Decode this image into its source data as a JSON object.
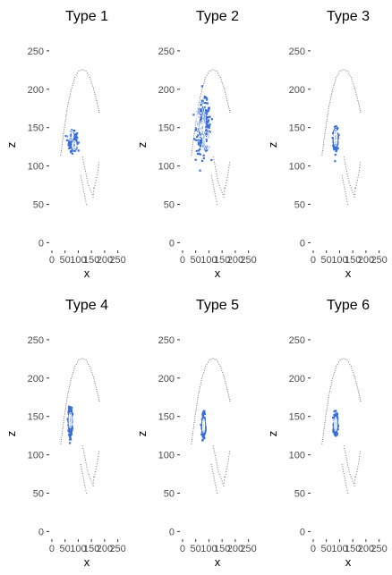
{
  "chart_data": {
    "type": "scatter",
    "layout": "2 rows x 3 columns",
    "x_ticks": [
      0,
      50,
      100,
      150,
      200,
      250
    ],
    "y_ticks": [
      0,
      50,
      100,
      150,
      200,
      250
    ],
    "xlim": [
      -10,
      275
    ],
    "ylim": [
      -10,
      265
    ],
    "xlabel": "x",
    "ylabel": "z",
    "grid": false,
    "colors": {
      "arc": "#555555",
      "cluster": "#3b6fd8",
      "contour": "#ffffff"
    },
    "background_outline": {
      "arc": [
        [
          32,
          115
        ],
        [
          45,
          148
        ],
        [
          58,
          178
        ],
        [
          72,
          200
        ],
        [
          86,
          216
        ],
        [
          100,
          224
        ],
        [
          114,
          226
        ],
        [
          128,
          224
        ],
        [
          142,
          216
        ],
        [
          156,
          202
        ],
        [
          170,
          183
        ],
        [
          180,
          168
        ]
      ],
      "lower_lines": [
        [
          [
            115,
            112
          ],
          [
            135,
            78
          ],
          [
            155,
            60
          ],
          [
            158,
            75
          ]
        ],
        [
          [
            108,
            88
          ],
          [
            125,
            58
          ],
          [
            132,
            47
          ]
        ],
        [
          [
            160,
            72
          ],
          [
            172,
            92
          ],
          [
            178,
            108
          ]
        ]
      ]
    },
    "panels": [
      {
        "title": "Type 1",
        "cluster_center": [
          80,
          132
        ],
        "spread": [
          14,
          11
        ],
        "contours": [
          [
            72,
            140,
            10,
            7
          ],
          [
            85,
            127,
            8,
            6
          ]
        ]
      },
      {
        "title": "Type 2",
        "cluster_center": [
          80,
          150
        ],
        "spread": [
          24,
          30
        ],
        "contours": [
          [
            70,
            160,
            16,
            22
          ],
          [
            90,
            133,
            13,
            16
          ],
          [
            75,
            150,
            8,
            10
          ]
        ]
      },
      {
        "title": "Type 3",
        "cluster_center": [
          85,
          135
        ],
        "spread": [
          7,
          13
        ],
        "contours": [
          [
            85,
            137,
            6,
            11
          ]
        ]
      },
      {
        "title": "Type 4",
        "cluster_center": [
          70,
          143
        ],
        "spread": [
          6,
          16
        ],
        "contours": [
          [
            70,
            145,
            5,
            10
          ]
        ]
      },
      {
        "title": "Type 5",
        "cluster_center": [
          80,
          138
        ],
        "spread": [
          5,
          12
        ],
        "contours": [
          [
            80,
            138,
            4,
            9
          ]
        ]
      },
      {
        "title": "Type 6",
        "cluster_center": [
          85,
          140
        ],
        "spread": [
          6,
          12
        ],
        "contours": [
          [
            85,
            140,
            5,
            9
          ]
        ]
      }
    ]
  }
}
